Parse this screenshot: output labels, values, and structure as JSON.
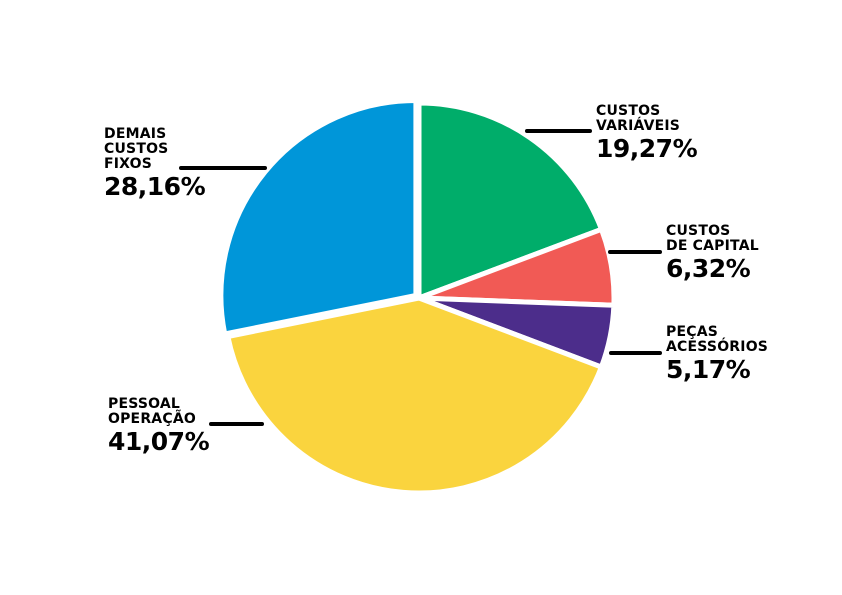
{
  "chart_data": {
    "type": "pie",
    "title": "",
    "slices": [
      {
        "label_lines": [
          "CUSTOS",
          "VARIÁVEIS"
        ],
        "value": 19.27,
        "value_label": "19,27%",
        "color": "#00ad6a"
      },
      {
        "label_lines": [
          "CUSTOS",
          "DE CAPITAL"
        ],
        "value": 6.32,
        "value_label": "6,32%",
        "color": "#f15a55"
      },
      {
        "label_lines": [
          "PEÇAS",
          "ACESSÓRIOS"
        ],
        "value": 5.17,
        "value_label": "5,17%",
        "color": "#4c2d8b"
      },
      {
        "label_lines": [
          "PESSOAL",
          "OPERAÇÃO"
        ],
        "value": 41.07,
        "value_label": "41,07%",
        "color": "#fad43e"
      },
      {
        "label_lines": [
          "DEMAIS",
          "CUSTOS",
          "FIXOS"
        ],
        "value": 28.16,
        "value_label": "28,16%",
        "color": "#0096d9"
      }
    ],
    "start": "12 o'clock",
    "direction": "clockwise",
    "legend": "none",
    "grid": false
  }
}
